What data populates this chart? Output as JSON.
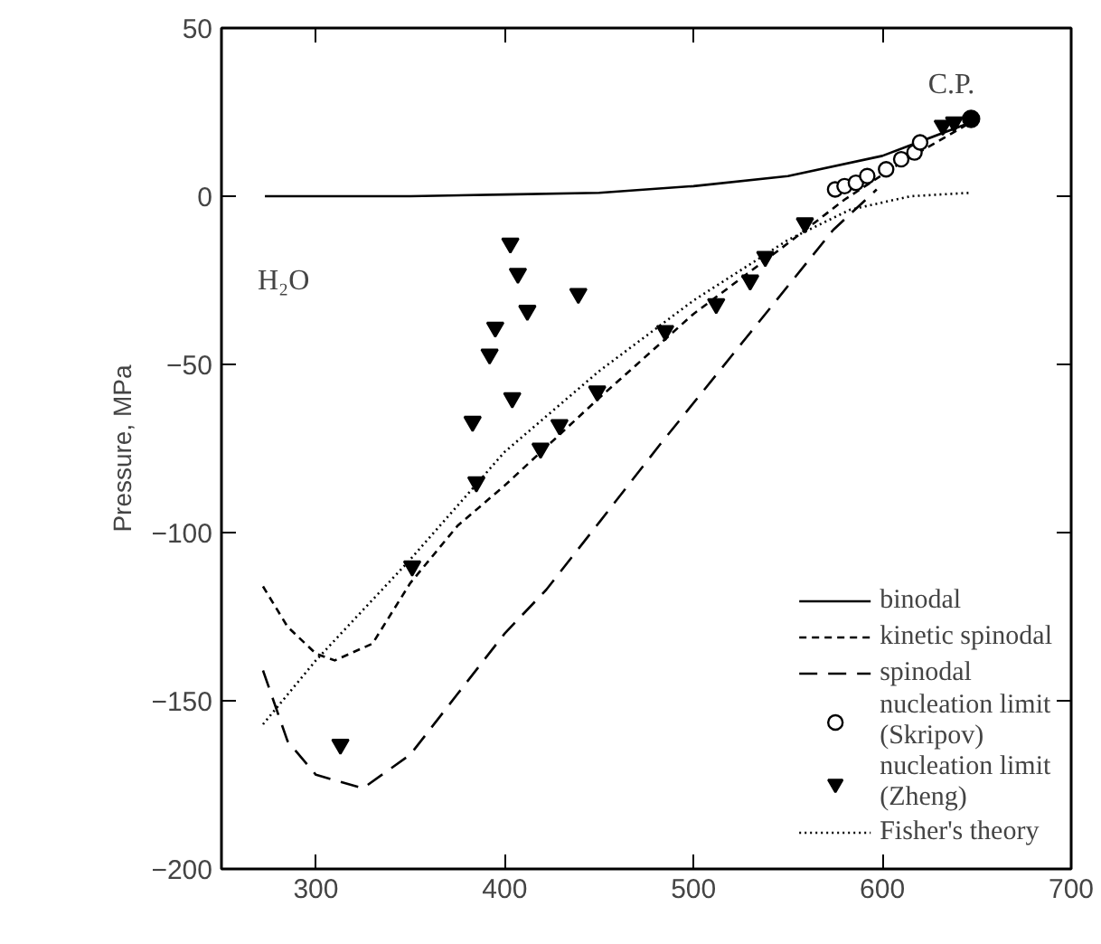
{
  "chart_data": {
    "type": "line",
    "ylabel": "Pressure, MPa",
    "xlim": [
      250,
      700
    ],
    "ylim": [
      -200,
      50
    ],
    "xticks": [
      300,
      400,
      500,
      600,
      700
    ],
    "yticks": [
      50,
      0,
      -50,
      -100,
      -150,
      -200
    ],
    "grid": false,
    "legend": "bottom right",
    "annotations": [
      "H₂O",
      {
        "text": "C.P.",
        "x": 647,
        "y": 23
      }
    ],
    "series": [
      {
        "name": "binodal",
        "color": "#000000",
        "line_style": "solid",
        "x": [
          273,
          350,
          400,
          450,
          500,
          550,
          600,
          647
        ],
        "values": [
          0,
          0,
          0.5,
          1,
          3,
          6,
          12,
          22
        ]
      },
      {
        "name": "kinetic spinodal",
        "color": "#000000",
        "line_style": "short_dashed",
        "x": [
          272,
          285,
          300,
          310,
          330,
          350,
          375,
          400,
          450,
          500,
          550,
          580,
          610,
          647
        ],
        "values": [
          -116,
          -128,
          -136,
          -138,
          -133,
          -115,
          -98,
          -86,
          -60,
          -35,
          -14,
          -1,
          10,
          22
        ]
      },
      {
        "name": "spinodal",
        "color": "#000000",
        "line_style": "dashed",
        "x": [
          272,
          285,
          300,
          325,
          350,
          375,
          400,
          422,
          450,
          482,
          528,
          574,
          597
        ],
        "values": [
          -141,
          -162,
          -172,
          -176,
          -166,
          -148,
          -130,
          -117,
          -97,
          -74,
          -42,
          -10,
          2
        ]
      },
      {
        "name": "nucleation limit\n(Skripov)",
        "color": "#000000",
        "type": "scatter",
        "marker": "circle",
        "x": [
          575,
          580,
          586,
          592,
          602,
          610,
          617,
          620
        ],
        "values": [
          2,
          3,
          4,
          6,
          8,
          11,
          13,
          16
        ]
      },
      {
        "name": "nucleation limit\n(Zheng)",
        "color": "#000000",
        "type": "scatter",
        "marker": "triangle",
        "x": [
          313,
          351,
          385,
          419,
          429,
          449,
          485,
          512,
          530,
          538,
          559,
          632,
          638,
          403,
          407,
          412,
          395,
          392,
          404,
          383,
          439
        ],
        "values": [
          -163,
          -110,
          -85,
          -75,
          -68,
          -58,
          -40,
          -32,
          -25,
          -18,
          -8,
          21,
          22,
          -14,
          -23,
          -34,
          -39,
          -47,
          -60,
          -67,
          -29
        ]
      },
      {
        "name": "Fisher's theory",
        "color": "#000000",
        "line_style": "dotted",
        "x": [
          272,
          300,
          350,
          400,
          450,
          500,
          550,
          583,
          615,
          646
        ],
        "values": [
          -157,
          -138,
          -108,
          -76,
          -52,
          -31,
          -13,
          -4,
          0,
          1
        ]
      },
      {
        "color": "#000000",
        "type": "scatter",
        "marker": "circle",
        "x": [
          647
        ],
        "values": [
          23
        ]
      }
    ]
  }
}
